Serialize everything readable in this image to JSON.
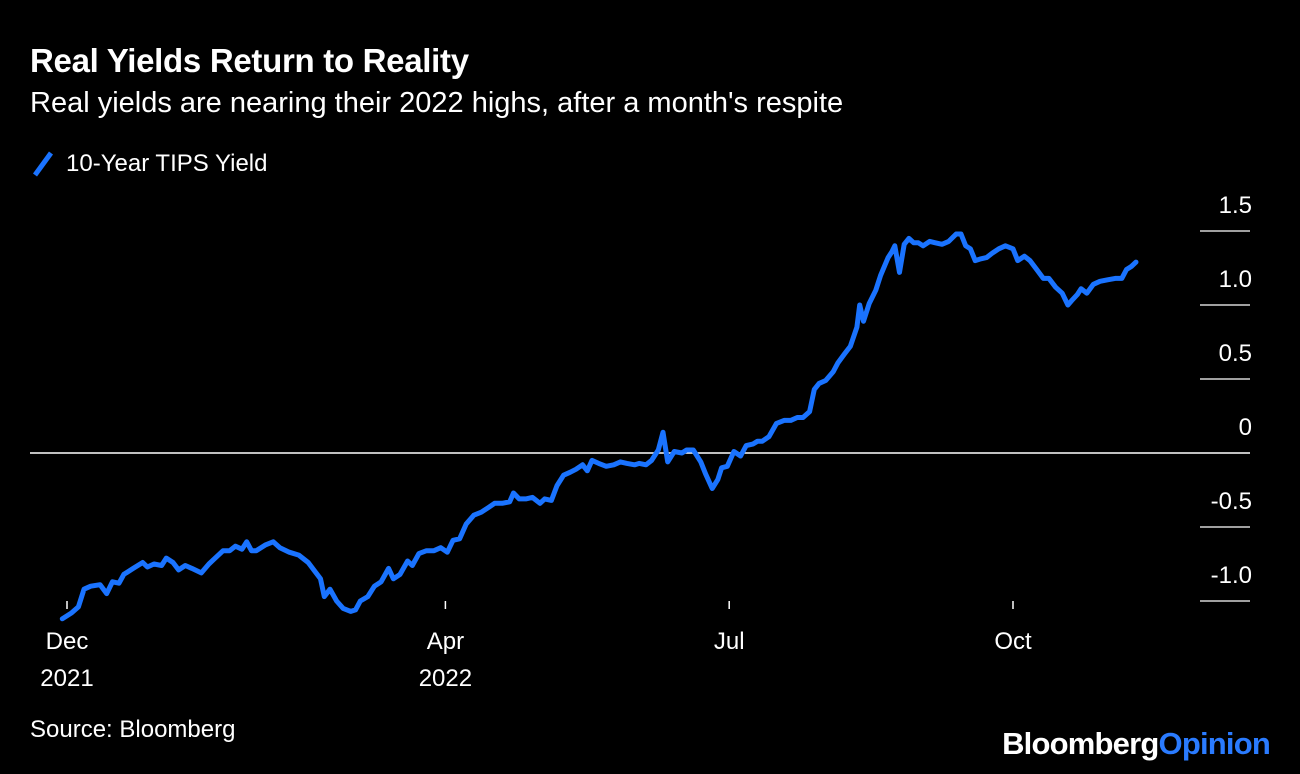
{
  "header": {
    "title": "Real Yields Return to Reality",
    "subtitle": "Real yields are nearing their 2022 highs, after a month's respite"
  },
  "legend": {
    "label": "10-Year TIPS Yield"
  },
  "footer": {
    "source": "Source: Bloomberg",
    "brand_primary": "Bloomberg",
    "brand_secondary": "Opinion"
  },
  "colors": {
    "background": "#000000",
    "series": "#1a73ff",
    "text": "#ffffff",
    "brand_accent": "#2a7bff"
  },
  "chart_data": {
    "type": "line",
    "title": "Real Yields Return to Reality",
    "subtitle": "Real yields are nearing their 2022 highs, after a month's respite",
    "xlabel": "",
    "ylabel": "",
    "ylim": [
      -1.1,
      1.6
    ],
    "yticks": [
      {
        "value": 1.5,
        "label": "1.5"
      },
      {
        "value": 1.0,
        "label": "1.0"
      },
      {
        "value": 0.5,
        "label": "0.5"
      },
      {
        "value": 0.0,
        "label": "0"
      },
      {
        "value": -0.5,
        "label": "-0.5"
      },
      {
        "value": -1.0,
        "label": "-1.0"
      }
    ],
    "xticks": [
      {
        "t": 0,
        "label": "Dec",
        "label2": "2021"
      },
      {
        "t": 4,
        "label": "Apr",
        "label2": "2022"
      },
      {
        "t": 7,
        "label": "Jul",
        "label2": ""
      },
      {
        "t": 10,
        "label": "Oct",
        "label2": ""
      }
    ],
    "x_units": "months since Dec 1, 2021",
    "zero_line": true,
    "series": [
      {
        "name": "10-Year TIPS Yield",
        "points": [
          [
            -0.05,
            -1.12
          ],
          [
            0.05,
            -1.08
          ],
          [
            0.12,
            -1.04
          ],
          [
            0.18,
            -0.92
          ],
          [
            0.25,
            -0.9
          ],
          [
            0.35,
            -0.89
          ],
          [
            0.42,
            -0.95
          ],
          [
            0.48,
            -0.87
          ],
          [
            0.55,
            -0.88
          ],
          [
            0.6,
            -0.82
          ],
          [
            0.7,
            -0.78
          ],
          [
            0.8,
            -0.74
          ],
          [
            0.85,
            -0.77
          ],
          [
            0.92,
            -0.75
          ],
          [
            1.0,
            -0.76
          ],
          [
            1.05,
            -0.71
          ],
          [
            1.12,
            -0.74
          ],
          [
            1.18,
            -0.79
          ],
          [
            1.25,
            -0.76
          ],
          [
            1.32,
            -0.78
          ],
          [
            1.42,
            -0.81
          ],
          [
            1.5,
            -0.75
          ],
          [
            1.55,
            -0.72
          ],
          [
            1.65,
            -0.66
          ],
          [
            1.72,
            -0.66
          ],
          [
            1.78,
            -0.63
          ],
          [
            1.85,
            -0.65
          ],
          [
            1.9,
            -0.6
          ],
          [
            1.95,
            -0.66
          ],
          [
            2.0,
            -0.66
          ],
          [
            2.1,
            -0.62
          ],
          [
            2.18,
            -0.6
          ],
          [
            2.25,
            -0.64
          ],
          [
            2.35,
            -0.67
          ],
          [
            2.45,
            -0.69
          ],
          [
            2.55,
            -0.74
          ],
          [
            2.62,
            -0.8
          ],
          [
            2.68,
            -0.85
          ],
          [
            2.72,
            -0.97
          ],
          [
            2.78,
            -0.92
          ],
          [
            2.85,
            -1.0
          ],
          [
            2.92,
            -1.05
          ],
          [
            3.0,
            -1.07
          ],
          [
            3.05,
            -1.06
          ],
          [
            3.1,
            -1.0
          ],
          [
            3.18,
            -0.97
          ],
          [
            3.25,
            -0.9
          ],
          [
            3.32,
            -0.87
          ],
          [
            3.4,
            -0.78
          ],
          [
            3.45,
            -0.85
          ],
          [
            3.52,
            -0.82
          ],
          [
            3.6,
            -0.73
          ],
          [
            3.65,
            -0.76
          ],
          [
            3.72,
            -0.68
          ],
          [
            3.8,
            -0.66
          ],
          [
            3.88,
            -0.66
          ],
          [
            3.95,
            -0.64
          ],
          [
            4.02,
            -0.67
          ],
          [
            4.08,
            -0.59
          ],
          [
            4.15,
            -0.58
          ],
          [
            4.22,
            -0.48
          ],
          [
            4.3,
            -0.42
          ],
          [
            4.38,
            -0.4
          ],
          [
            4.45,
            -0.37
          ],
          [
            4.52,
            -0.34
          ],
          [
            4.6,
            -0.34
          ],
          [
            4.68,
            -0.33
          ],
          [
            4.72,
            -0.27
          ],
          [
            4.78,
            -0.31
          ],
          [
            4.85,
            -0.31
          ],
          [
            4.92,
            -0.3
          ],
          [
            5.0,
            -0.34
          ],
          [
            5.05,
            -0.31
          ],
          [
            5.12,
            -0.32
          ],
          [
            5.18,
            -0.22
          ],
          [
            5.25,
            -0.15
          ],
          [
            5.32,
            -0.13
          ],
          [
            5.38,
            -0.11
          ],
          [
            5.45,
            -0.08
          ],
          [
            5.5,
            -0.12
          ],
          [
            5.55,
            -0.05
          ],
          [
            5.62,
            -0.07
          ],
          [
            5.7,
            -0.09
          ],
          [
            5.78,
            -0.08
          ],
          [
            5.85,
            -0.06
          ],
          [
            5.92,
            -0.07
          ],
          [
            6.0,
            -0.08
          ],
          [
            6.05,
            -0.07
          ],
          [
            6.12,
            -0.08
          ],
          [
            6.18,
            -0.05
          ],
          [
            6.25,
            0.02
          ],
          [
            6.3,
            0.14
          ],
          [
            6.35,
            -0.06
          ],
          [
            6.42,
            0.01
          ],
          [
            6.5,
            0.0
          ],
          [
            6.55,
            0.02
          ],
          [
            6.62,
            0.02
          ],
          [
            6.7,
            -0.06
          ],
          [
            6.75,
            -0.14
          ],
          [
            6.82,
            -0.24
          ],
          [
            6.88,
            -0.18
          ],
          [
            6.92,
            -0.1
          ],
          [
            6.98,
            -0.09
          ],
          [
            7.05,
            0.01
          ],
          [
            7.12,
            -0.02
          ],
          [
            7.18,
            0.05
          ],
          [
            7.25,
            0.06
          ],
          [
            7.3,
            0.08
          ],
          [
            7.35,
            0.08
          ],
          [
            7.42,
            0.11
          ],
          [
            7.5,
            0.2
          ],
          [
            7.58,
            0.22
          ],
          [
            7.65,
            0.22
          ],
          [
            7.72,
            0.24
          ],
          [
            7.78,
            0.24
          ],
          [
            7.85,
            0.28
          ],
          [
            7.9,
            0.43
          ],
          [
            7.95,
            0.47
          ],
          [
            8.02,
            0.49
          ],
          [
            8.1,
            0.55
          ],
          [
            8.15,
            0.61
          ],
          [
            8.22,
            0.67
          ],
          [
            8.28,
            0.72
          ],
          [
            8.35,
            0.85
          ],
          [
            8.38,
            1.0
          ],
          [
            8.42,
            0.89
          ],
          [
            8.48,
            1.01
          ],
          [
            8.55,
            1.1
          ],
          [
            8.6,
            1.2
          ],
          [
            8.68,
            1.32
          ],
          [
            8.72,
            1.36
          ],
          [
            8.75,
            1.4
          ],
          [
            8.8,
            1.22
          ],
          [
            8.85,
            1.41
          ],
          [
            8.9,
            1.45
          ],
          [
            8.95,
            1.42
          ],
          [
            9.0,
            1.42
          ],
          [
            9.05,
            1.4
          ],
          [
            9.12,
            1.43
          ],
          [
            9.18,
            1.42
          ],
          [
            9.25,
            1.41
          ],
          [
            9.32,
            1.43
          ],
          [
            9.4,
            1.48
          ],
          [
            9.45,
            1.48
          ],
          [
            9.5,
            1.4
          ],
          [
            9.55,
            1.38
          ],
          [
            9.6,
            1.3
          ],
          [
            9.65,
            1.31
          ],
          [
            9.72,
            1.32
          ],
          [
            9.78,
            1.35
          ],
          [
            9.85,
            1.38
          ],
          [
            9.92,
            1.4
          ],
          [
            10.0,
            1.38
          ],
          [
            10.05,
            1.3
          ],
          [
            10.12,
            1.33
          ],
          [
            10.18,
            1.3
          ],
          [
            10.25,
            1.24
          ],
          [
            10.32,
            1.18
          ],
          [
            10.38,
            1.18
          ],
          [
            10.45,
            1.12
          ],
          [
            10.52,
            1.08
          ],
          [
            10.58,
            1.0
          ],
          [
            10.62,
            1.03
          ],
          [
            10.68,
            1.07
          ],
          [
            10.72,
            1.11
          ],
          [
            10.78,
            1.08
          ],
          [
            10.85,
            1.14
          ],
          [
            10.92,
            1.16
          ],
          [
            11.0,
            1.17
          ],
          [
            11.08,
            1.18
          ],
          [
            11.15,
            1.18
          ],
          [
            11.2,
            1.24
          ],
          [
            11.25,
            1.26
          ],
          [
            11.3,
            1.29
          ]
        ]
      }
    ]
  }
}
